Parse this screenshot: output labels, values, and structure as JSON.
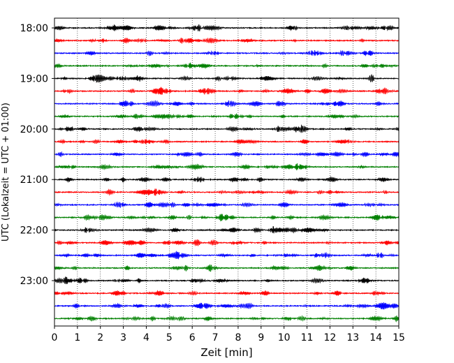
{
  "chart_data": {
    "type": "line",
    "title": "",
    "xlabel": "Zeit  [min]",
    "ylabel": "UTC (Lokalzeit = UTC + 01:00)",
    "xlim": [
      0,
      15
    ],
    "x_ticks": [
      "0",
      "1",
      "2",
      "3",
      "4",
      "5",
      "6",
      "7",
      "8",
      "9",
      "10",
      "11",
      "12",
      "13",
      "14",
      "15"
    ],
    "y_ticks": [
      "18:00",
      "19:00",
      "20:00",
      "21:00",
      "22:00",
      "23:00"
    ],
    "grid": "vertical dotted at each minute",
    "trace_colors": [
      "#000000",
      "#ff0000",
      "#0000ff",
      "#008000"
    ],
    "series": [
      {
        "start": "18:00",
        "color": "#000000"
      },
      {
        "start": "18:15",
        "color": "#ff0000"
      },
      {
        "start": "18:30",
        "color": "#0000ff"
      },
      {
        "start": "18:45",
        "color": "#008000"
      },
      {
        "start": "19:00",
        "color": "#000000"
      },
      {
        "start": "19:15",
        "color": "#ff0000"
      },
      {
        "start": "19:30",
        "color": "#0000ff"
      },
      {
        "start": "19:45",
        "color": "#008000"
      },
      {
        "start": "20:00",
        "color": "#000000"
      },
      {
        "start": "20:15",
        "color": "#ff0000"
      },
      {
        "start": "20:30",
        "color": "#0000ff"
      },
      {
        "start": "20:45",
        "color": "#008000"
      },
      {
        "start": "21:00",
        "color": "#000000"
      },
      {
        "start": "21:15",
        "color": "#ff0000"
      },
      {
        "start": "21:30",
        "color": "#0000ff"
      },
      {
        "start": "21:45",
        "color": "#008000"
      },
      {
        "start": "22:00",
        "color": "#000000"
      },
      {
        "start": "22:15",
        "color": "#ff0000"
      },
      {
        "start": "22:30",
        "color": "#0000ff"
      },
      {
        "start": "22:45",
        "color": "#008000"
      },
      {
        "start": "23:00",
        "color": "#000000"
      },
      {
        "start": "23:15",
        "color": "#ff0000"
      },
      {
        "start": "23:30",
        "color": "#0000ff"
      },
      {
        "start": "23:45",
        "color": "#008000"
      }
    ]
  }
}
